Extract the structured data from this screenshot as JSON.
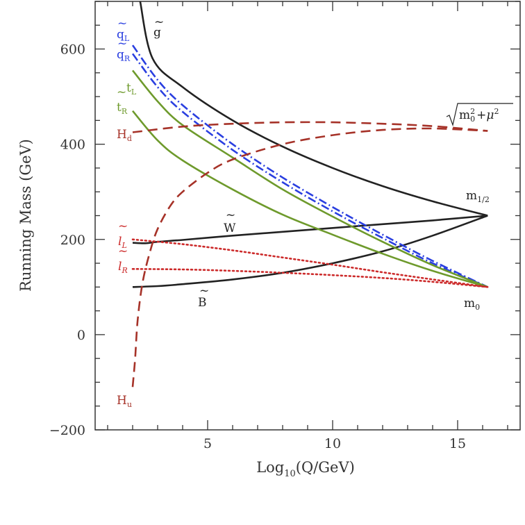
{
  "chart_data": {
    "type": "line",
    "title": "",
    "xlabel": "Log10(Q/GeV)",
    "ylabel": "Running Mass (GeV)",
    "xlim": [
      0.5,
      17.5
    ],
    "ylim": [
      -200,
      700
    ],
    "xticks": [
      5,
      10,
      15
    ],
    "yticks": [
      -200,
      0,
      200,
      400,
      600
    ],
    "series": [
      {
        "name": "g~",
        "color": "#222222",
        "style": "solid",
        "x": [
          2.3,
          2.8,
          4,
          6,
          8,
          10,
          12,
          14,
          16.2
        ],
        "y": [
          700,
          580,
          520,
          450,
          395,
          350,
          312,
          280,
          250
        ]
      },
      {
        "name": "m1/2",
        "color": "#222222",
        "style": "solid",
        "x": [
          16.2
        ],
        "y": [
          250
        ]
      },
      {
        "name": "W~",
        "color": "#222222",
        "style": "solid",
        "x": [
          2,
          2.5,
          3,
          4,
          6,
          8,
          10,
          12,
          14,
          16.2
        ],
        "y": [
          193,
          192,
          195,
          199,
          208,
          216,
          224,
          232,
          240,
          250
        ]
      },
      {
        "name": "B~",
        "color": "#222222",
        "style": "solid",
        "x": [
          2,
          3,
          4,
          6,
          8,
          10,
          12,
          14,
          16.2
        ],
        "y": [
          100,
          102,
          106,
          116,
          130,
          150,
          175,
          208,
          250
        ]
      },
      {
        "name": "q~L",
        "color": "#2a3fe0",
        "style": "dashdot",
        "x": [
          2,
          3,
          4,
          6,
          8,
          10,
          12,
          14,
          16.2
        ],
        "y": [
          608,
          535,
          482,
          400,
          330,
          268,
          210,
          155,
          100
        ]
      },
      {
        "name": "q~R",
        "color": "#2a3fe0",
        "style": "dashdot",
        "x": [
          2,
          3,
          4,
          6,
          8,
          10,
          12,
          14,
          16.2
        ],
        "y": [
          590,
          520,
          468,
          388,
          320,
          259,
          203,
          150,
          100
        ]
      },
      {
        "name": "t~L",
        "color": "#6e9a2c",
        "style": "solid",
        "x": [
          2,
          3,
          4,
          6,
          8,
          10,
          12,
          14,
          16.2
        ],
        "y": [
          555,
          490,
          440,
          372,
          305,
          248,
          195,
          146,
          100
        ]
      },
      {
        "name": "t~R",
        "color": "#6e9a2c",
        "style": "solid",
        "x": [
          2,
          3,
          4,
          6,
          8,
          10,
          12,
          14,
          16.2
        ],
        "y": [
          470,
          408,
          366,
          305,
          252,
          210,
          170,
          134,
          100
        ]
      },
      {
        "name": "l~L",
        "color": "#cc2a2a",
        "style": "dotted",
        "x": [
          2,
          4,
          6,
          8,
          10,
          12,
          14,
          16.2
        ],
        "y": [
          200,
          190,
          177,
          162,
          147,
          131,
          116,
          100
        ]
      },
      {
        "name": "l~R",
        "color": "#cc2a2a",
        "style": "dotted",
        "x": [
          2,
          4,
          6,
          8,
          10,
          12,
          14,
          16.2
        ],
        "y": [
          138,
          137,
          134,
          130,
          125,
          119,
          111,
          100
        ]
      },
      {
        "name": "m0",
        "color": "#222222",
        "style": "solid",
        "x": [
          16.2
        ],
        "y": [
          100
        ]
      },
      {
        "name": "Hd",
        "color": "#a63228",
        "style": "dashed",
        "x": [
          2,
          4,
          6,
          8,
          10,
          12,
          14,
          16.2
        ],
        "y": [
          425,
          437,
          443,
          446,
          446,
          443,
          438,
          428
        ]
      },
      {
        "name": "Hu",
        "color": "#a63228",
        "style": "dashed",
        "x": [
          2,
          2.1,
          2.2,
          2.4,
          2.7,
          3,
          3.5,
          4,
          5,
          6,
          8,
          10,
          12,
          14,
          16.2
        ],
        "y": [
          -110,
          -50,
          30,
          110,
          175,
          222,
          270,
          300,
          340,
          368,
          400,
          419,
          430,
          433,
          428
        ]
      }
    ],
    "labels": {
      "gluino": "g",
      "qL_main": "q",
      "qL_sub": "L",
      "qR_main": "q",
      "qR_sub": "R",
      "tL_main": "t",
      "tL_sub": "L",
      "tR_main": "t",
      "tR_sub": "R",
      "Hd_main": "H",
      "Hd_sub": "d",
      "Hu_main": "H",
      "Hu_sub": "u",
      "lL_main": "l",
      "lL_sub": "L",
      "lR_main": "l",
      "lR_sub": "R",
      "W": "W",
      "B": "B",
      "m0_main": "m",
      "m0_sub": "0",
      "mhalf_main": "m",
      "mhalf_sub": "1/2",
      "sqrt_m": "m",
      "sqrt_sub": "0",
      "sqrt_sup": "2",
      "sqrt_plus": "+",
      "sqrt_mu": "μ",
      "sqrt_mu_sup": "2",
      "tilde": "~"
    },
    "grid": false,
    "legend": "none"
  }
}
